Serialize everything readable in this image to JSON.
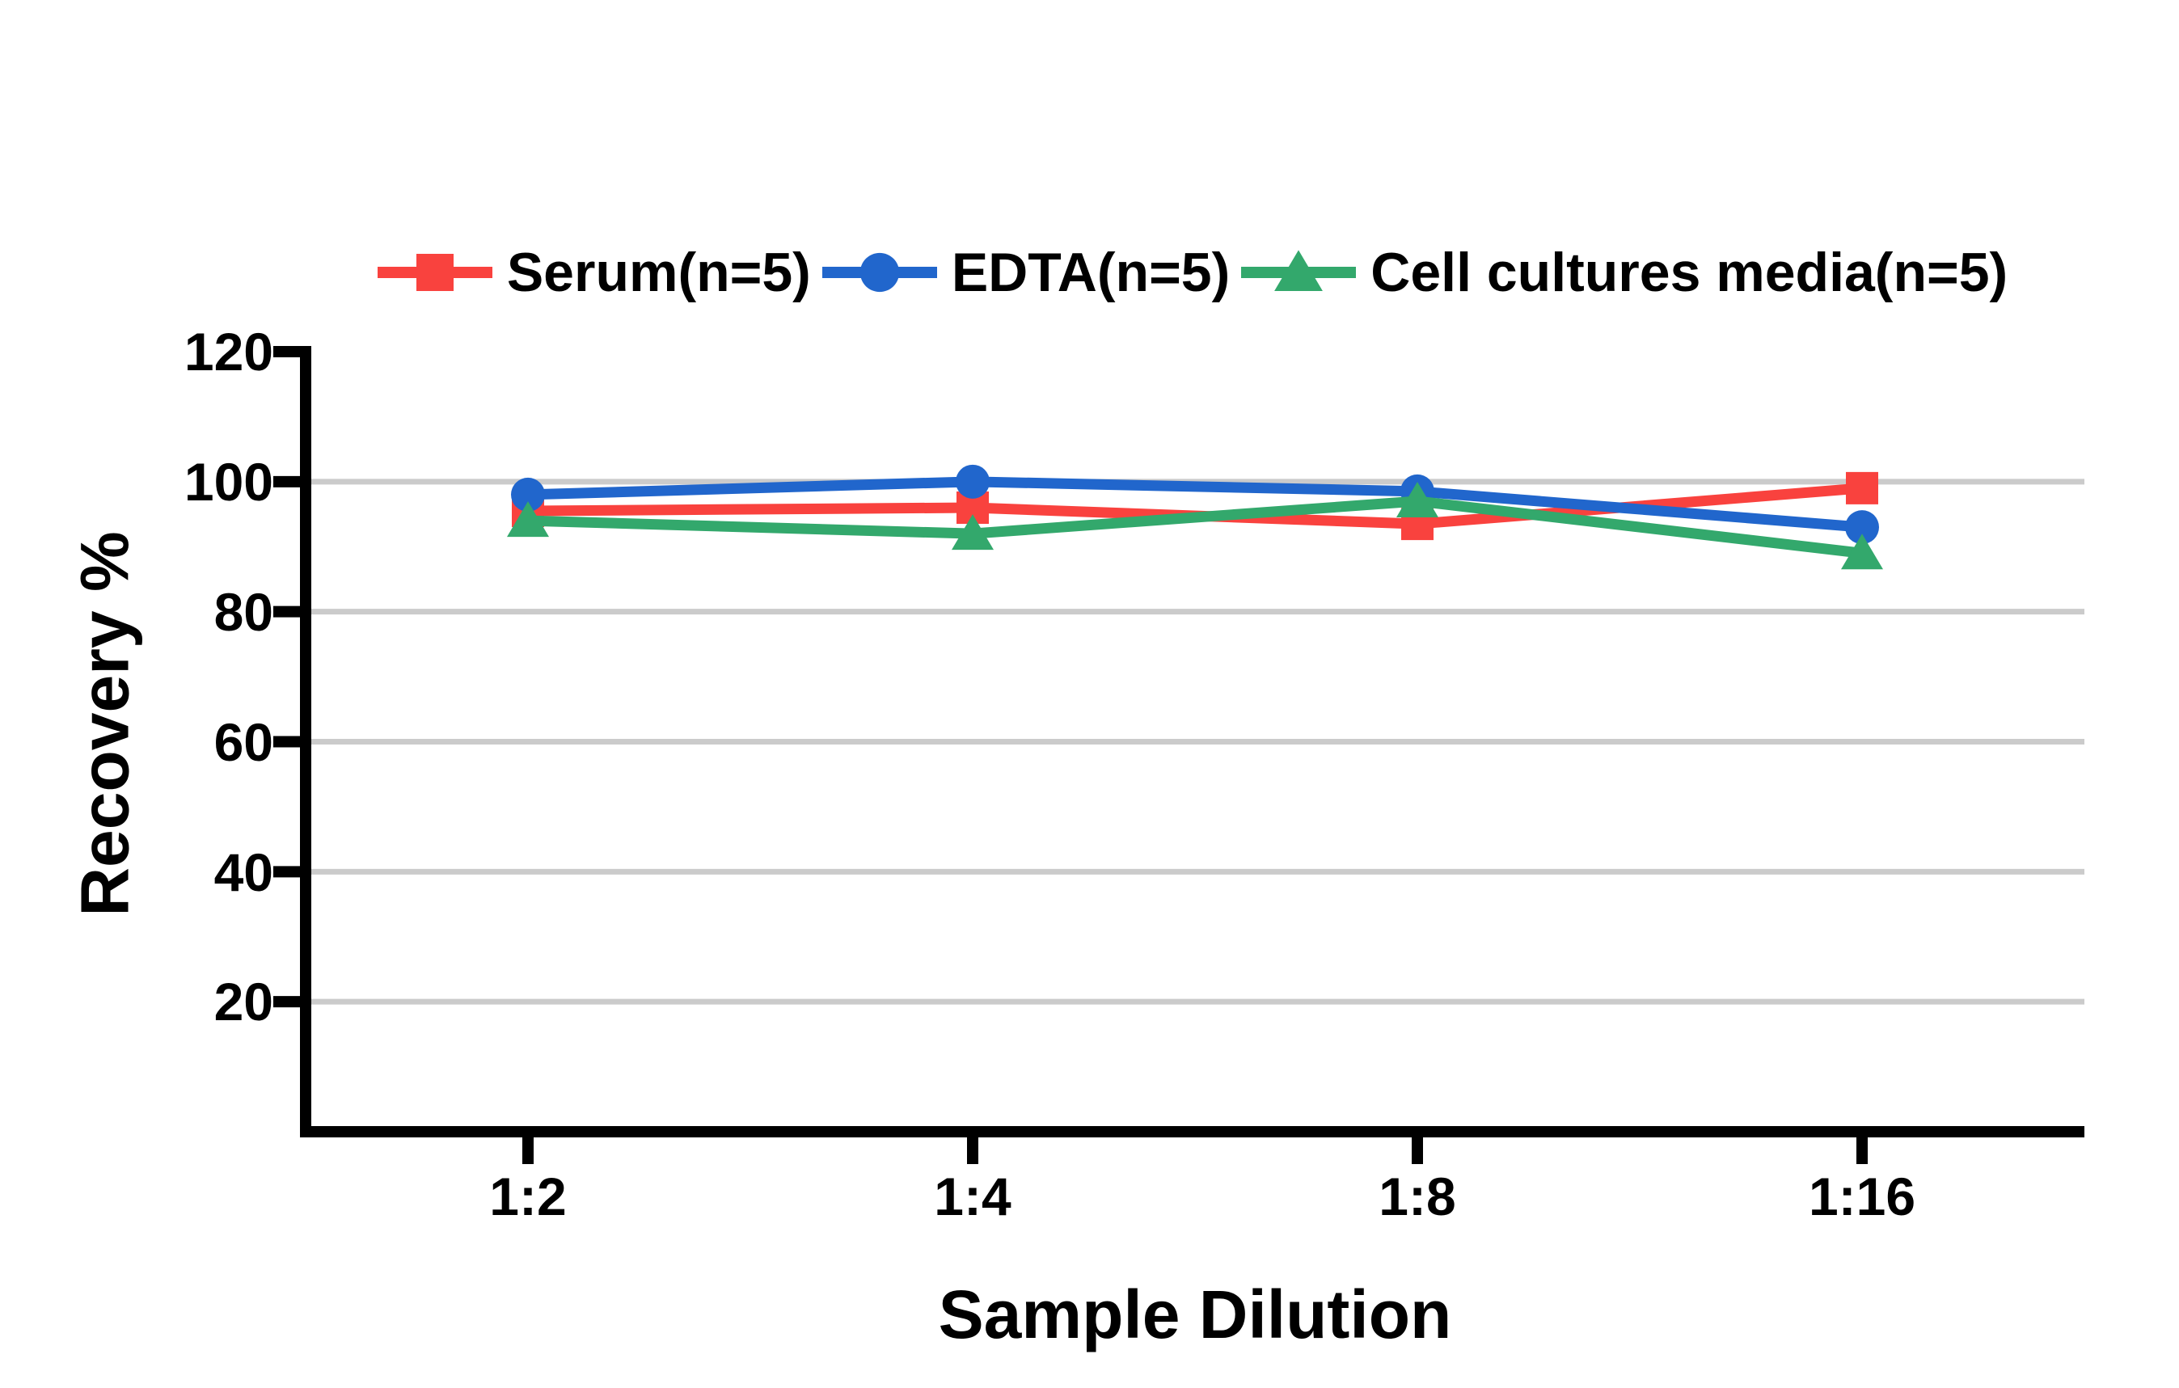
{
  "chart_data": {
    "type": "line",
    "xlabel": "Sample Dilution",
    "ylabel": "Recovery %",
    "categories": [
      "1:2",
      "1:4",
      "1:8",
      "1:16"
    ],
    "series": [
      {
        "name": "Serum(n=5)",
        "color": "#F9423E",
        "marker": "square",
        "values": [
          95.5,
          96,
          93.5,
          99
        ]
      },
      {
        "name": "EDTA(n=5)",
        "color": "#2166CC",
        "marker": "circle",
        "values": [
          98,
          100,
          98.5,
          93
        ]
      },
      {
        "name": "Cell cultures media(n=5)",
        "color": "#33A86C",
        "marker": "triangle",
        "values": [
          94,
          92,
          97,
          89
        ]
      }
    ],
    "ylim": [
      0,
      120
    ],
    "yticks": [
      20,
      40,
      60,
      80,
      100,
      120
    ],
    "ytick_labels": [
      "20",
      "40",
      "60",
      "80",
      "100",
      "120"
    ],
    "grid_values": [
      20,
      40,
      60,
      80,
      100
    ],
    "grid_color": "#CBCBCB",
    "axis_color": "#000000",
    "grid": "horizontal",
    "legend_position": "top-center"
  }
}
